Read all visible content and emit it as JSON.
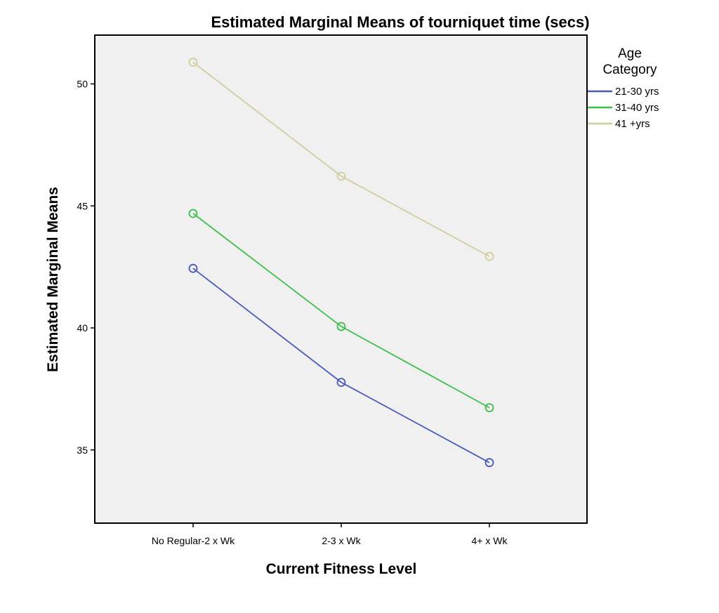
{
  "chart_data": {
    "type": "line",
    "title": "Estimated Marginal Means of tourniquet time (secs)",
    "xlabel": "Current Fitness Level",
    "ylabel": "Estimated Marginal Means",
    "categories": [
      "No Regular-2 x Wk",
      "2-3 x Wk",
      "4+ x Wk"
    ],
    "ylim": [
      32,
      52
    ],
    "yticks": [
      35,
      40,
      45,
      50
    ],
    "grid": false,
    "legend": {
      "title_line1": "Age",
      "title_line2": "Category",
      "placement": "right"
    },
    "plot_background": "#f0f0f0",
    "series": [
      {
        "name": "21-30 yrs",
        "color": "#4a5ab8",
        "values": [
          42.44,
          37.77,
          34.48
        ]
      },
      {
        "name": "31-40 yrs",
        "color": "#3fbe4c",
        "values": [
          44.69,
          40.06,
          36.73
        ]
      },
      {
        "name": "41 +yrs",
        "color": "#d2cd9e",
        "values": [
          50.89,
          46.22,
          42.93
        ]
      }
    ]
  }
}
